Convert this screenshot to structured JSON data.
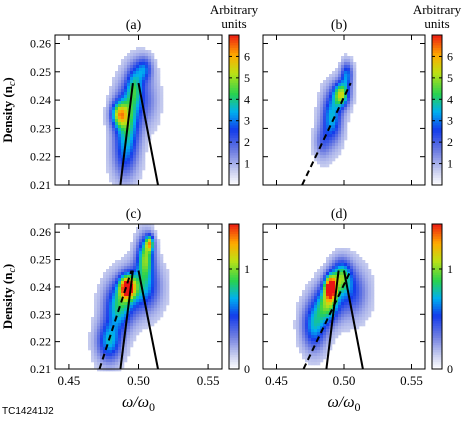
{
  "figure_id": "TC14241J2",
  "chart_data": [
    {
      "type": "heatmap",
      "panel_label": "(a)",
      "ylabel": "Density (n",
      "ylabel_sub": "c",
      "ylabel_close": ")",
      "xlabel": "",
      "xlim": [
        0.44,
        0.56
      ],
      "ylim": [
        0.21,
        0.263
      ],
      "xticks": [
        0.45,
        0.5,
        0.55
      ],
      "xtick_labels": [
        "",
        "",
        ""
      ],
      "yticks": [
        0.21,
        0.22,
        0.23,
        0.24,
        0.25,
        0.26
      ],
      "ytick_labels": [
        "0.21",
        "0.22",
        "0.23",
        "0.24",
        "0.25",
        "0.26"
      ],
      "colorbar": {
        "title": "Arbitrary units",
        "min": 0,
        "max": 7,
        "ticks": [
          1,
          2,
          3,
          4,
          5,
          6
        ],
        "tick_labels": [
          "1",
          "2",
          "3",
          "4",
          "5",
          "6"
        ]
      },
      "blobs": [
        {
          "x": 0.492,
          "y": 0.233,
          "sx": 0.006,
          "sy": 0.008,
          "v": 3.5
        },
        {
          "x": 0.486,
          "y": 0.235,
          "sx": 0.004,
          "sy": 0.003,
          "v": 3.5
        },
        {
          "x": 0.497,
          "y": 0.245,
          "sx": 0.004,
          "sy": 0.005,
          "v": 2.5
        },
        {
          "x": 0.504,
          "y": 0.251,
          "sx": 0.004,
          "sy": 0.003,
          "v": 2.2
        },
        {
          "x": 0.505,
          "y": 0.24,
          "sx": 0.006,
          "sy": 0.006,
          "v": 1.2
        },
        {
          "x": 0.49,
          "y": 0.22,
          "sx": 0.006,
          "sy": 0.006,
          "v": 1.5
        }
      ],
      "curves": [
        {
          "style": "solid",
          "points": [
            [
              0.487,
              0.21
            ],
            [
              0.496,
              0.246
            ]
          ]
        },
        {
          "style": "solid",
          "points": [
            [
              0.5,
              0.246
            ],
            [
              0.514,
              0.21
            ]
          ]
        }
      ]
    },
    {
      "type": "heatmap",
      "panel_label": "(b)",
      "xlim": [
        0.44,
        0.56
      ],
      "ylim": [
        0.21,
        0.263
      ],
      "xticks": [
        0.45,
        0.5,
        0.55
      ],
      "xtick_labels": [
        "",
        "",
        ""
      ],
      "yticks": [
        0.21,
        0.22,
        0.23,
        0.24,
        0.25,
        0.26
      ],
      "ytick_labels": [
        "",
        "",
        "",
        "",
        "",
        ""
      ],
      "colorbar": {
        "title": "Arbitrary units",
        "min": 0,
        "max": 7,
        "ticks": [
          1,
          2,
          3,
          4,
          5,
          6
        ],
        "tick_labels": [
          "1",
          "2",
          "3",
          "4",
          "5",
          "6"
        ]
      },
      "blobs": [
        {
          "x": 0.498,
          "y": 0.242,
          "sx": 0.004,
          "sy": 0.003,
          "v": 4.5
        },
        {
          "x": 0.491,
          "y": 0.234,
          "sx": 0.005,
          "sy": 0.006,
          "v": 3.0
        },
        {
          "x": 0.502,
          "y": 0.249,
          "sx": 0.003,
          "sy": 0.003,
          "v": 2.5
        },
        {
          "x": 0.484,
          "y": 0.225,
          "sx": 0.004,
          "sy": 0.004,
          "v": 1.2
        }
      ],
      "curves": [
        {
          "style": "dashed",
          "points": [
            [
              0.469,
              0.21
            ],
            [
              0.505,
              0.246
            ]
          ]
        }
      ]
    },
    {
      "type": "heatmap",
      "panel_label": "(c)",
      "ylabel": "Density (n",
      "ylabel_sub": "c",
      "ylabel_close": ")",
      "xlabel": "ω/ω",
      "xlabel_sub": "0",
      "xlim": [
        0.44,
        0.56
      ],
      "ylim": [
        0.21,
        0.263
      ],
      "xticks": [
        0.45,
        0.5,
        0.55
      ],
      "xtick_labels": [
        "0.45",
        "0.50",
        "0.55"
      ],
      "yticks": [
        0.21,
        0.22,
        0.23,
        0.24,
        0.25,
        0.26
      ],
      "ytick_labels": [
        "0.21",
        "0.22",
        "0.23",
        "0.24",
        "0.25",
        "0.26"
      ],
      "colorbar": {
        "title": "",
        "min": 0,
        "max": 1.45,
        "ticks": [
          0,
          1
        ],
        "tick_labels": [
          "0",
          "1"
        ]
      },
      "blobs": [
        {
          "x": 0.492,
          "y": 0.24,
          "sx": 0.004,
          "sy": 0.003,
          "v": 1.2
        },
        {
          "x": 0.486,
          "y": 0.233,
          "sx": 0.007,
          "sy": 0.006,
          "v": 0.7
        },
        {
          "x": 0.505,
          "y": 0.251,
          "sx": 0.004,
          "sy": 0.005,
          "v": 0.8
        },
        {
          "x": 0.508,
          "y": 0.256,
          "sx": 0.002,
          "sy": 0.002,
          "v": 0.8
        },
        {
          "x": 0.503,
          "y": 0.24,
          "sx": 0.008,
          "sy": 0.006,
          "v": 0.6
        },
        {
          "x": 0.479,
          "y": 0.22,
          "sx": 0.006,
          "sy": 0.005,
          "v": 0.6
        }
      ],
      "curves": [
        {
          "style": "dashed",
          "points": [
            [
              0.472,
              0.21
            ],
            [
              0.495,
              0.246
            ]
          ]
        },
        {
          "style": "solid",
          "points": [
            [
              0.487,
              0.21
            ],
            [
              0.496,
              0.246
            ]
          ]
        },
        {
          "style": "solid",
          "points": [
            [
              0.5,
              0.246
            ],
            [
              0.514,
              0.21
            ]
          ]
        }
      ]
    },
    {
      "type": "heatmap",
      "panel_label": "(d)",
      "xlabel": "ω/ω",
      "xlabel_sub": "0",
      "xlim": [
        0.44,
        0.56
      ],
      "ylim": [
        0.21,
        0.263
      ],
      "xticks": [
        0.45,
        0.5,
        0.55
      ],
      "xtick_labels": [
        "0.45",
        "0.50",
        "0.55"
      ],
      "yticks": [
        0.21,
        0.22,
        0.23,
        0.24,
        0.25,
        0.26
      ],
      "ytick_labels": [
        "",
        "",
        "",
        "",
        "",
        ""
      ],
      "colorbar": {
        "title": "",
        "min": 0,
        "max": 1.45,
        "ticks": [
          0,
          1
        ],
        "tick_labels": [
          "0",
          "1"
        ]
      },
      "blobs": [
        {
          "x": 0.49,
          "y": 0.24,
          "sx": 0.003,
          "sy": 0.003,
          "v": 1.2
        },
        {
          "x": 0.488,
          "y": 0.234,
          "sx": 0.006,
          "sy": 0.005,
          "v": 0.8
        },
        {
          "x": 0.498,
          "y": 0.244,
          "sx": 0.005,
          "sy": 0.004,
          "v": 0.7
        },
        {
          "x": 0.478,
          "y": 0.226,
          "sx": 0.006,
          "sy": 0.006,
          "v": 0.6
        },
        {
          "x": 0.505,
          "y": 0.238,
          "sx": 0.008,
          "sy": 0.006,
          "v": 0.4
        }
      ],
      "curves": [
        {
          "style": "dashed",
          "points": [
            [
              0.47,
              0.21
            ],
            [
              0.505,
              0.246
            ]
          ]
        },
        {
          "style": "solid",
          "points": [
            [
              0.487,
              0.21
            ],
            [
              0.496,
              0.246
            ]
          ]
        },
        {
          "style": "solid",
          "points": [
            [
              0.5,
              0.246
            ],
            [
              0.514,
              0.21
            ]
          ]
        }
      ]
    }
  ]
}
